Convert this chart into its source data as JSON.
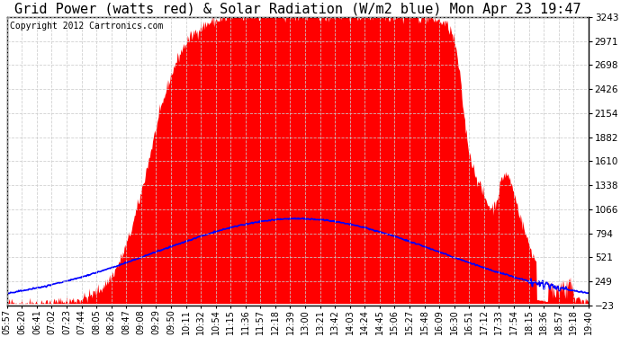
{
  "title": "Grid Power (watts red) & Solar Radiation (W/m2 blue) Mon Apr 23 19:47",
  "copyright_text": "Copyright 2012 Cartronics.com",
  "yticks": [
    3242.8,
    2970.7,
    2698.5,
    2426.4,
    2154.2,
    1882.1,
    1609.9,
    1337.8,
    1065.6,
    793.5,
    521.3,
    249.1,
    -23.0
  ],
  "ymin": -23.0,
  "ymax": 3242.8,
  "grid_color": "#aaaaaa",
  "bg_color": "#ffffff",
  "fill_color": "#ff0000",
  "line_color": "#0000ff",
  "title_fontsize": 11,
  "copyright_fontsize": 7,
  "tick_fontsize": 7.5,
  "xtick_labels": [
    "05:57",
    "06:20",
    "06:41",
    "07:02",
    "07:23",
    "07:44",
    "08:05",
    "08:26",
    "08:47",
    "09:08",
    "09:29",
    "09:50",
    "10:11",
    "10:32",
    "10:54",
    "11:15",
    "11:36",
    "11:57",
    "12:18",
    "12:39",
    "13:00",
    "13:21",
    "13:42",
    "14:03",
    "14:24",
    "14:45",
    "15:06",
    "15:27",
    "15:48",
    "16:09",
    "16:30",
    "16:51",
    "17:12",
    "17:33",
    "17:54",
    "18:15",
    "18:36",
    "18:57",
    "19:18",
    "19:40"
  ]
}
